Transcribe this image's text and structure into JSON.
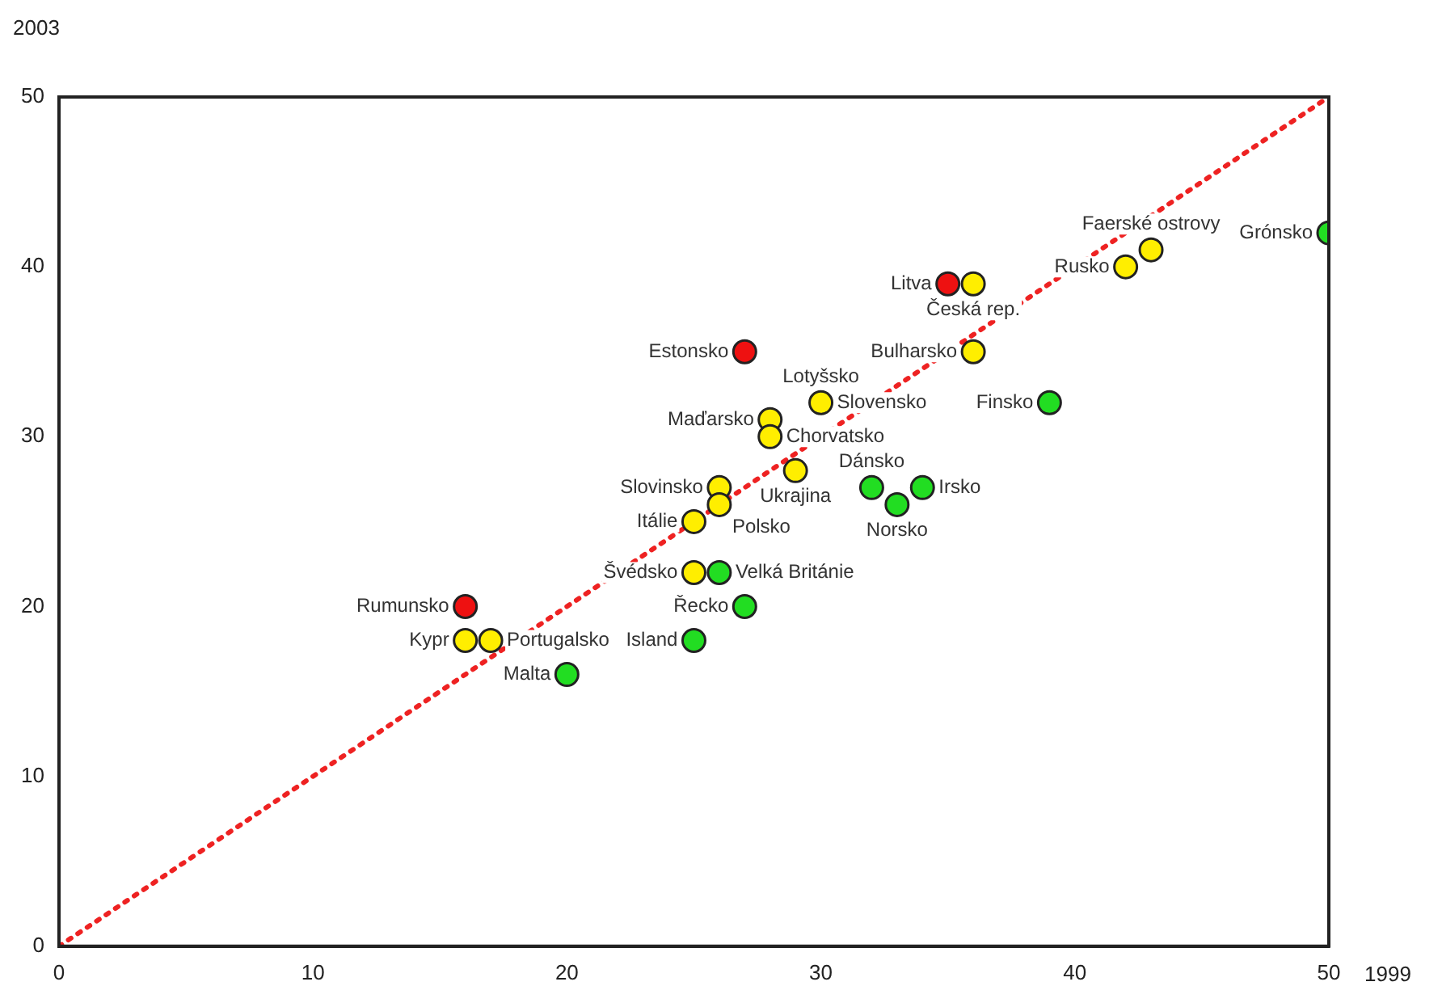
{
  "chart_data": {
    "type": "scatter",
    "xlabel": "1999",
    "ylabel": "2003",
    "xlim": [
      0,
      50
    ],
    "ylim": [
      0,
      50
    ],
    "xticks": [
      0,
      10,
      20,
      30,
      40,
      50
    ],
    "yticks": [
      0,
      10,
      20,
      30,
      40,
      50
    ],
    "grid": false,
    "legend": false,
    "marker": "circle",
    "series": [
      {
        "color": "#ee1111",
        "x": [
          35,
          27,
          16
        ],
        "values": [
          39,
          35,
          20
        ]
      },
      {
        "color": "#ffee00",
        "x": [
          43,
          42,
          36,
          36,
          30,
          28,
          28,
          29,
          26,
          26,
          25,
          25,
          16,
          17
        ],
        "values": [
          41,
          40,
          39,
          35,
          32,
          31,
          30,
          28,
          27,
          26,
          25,
          22,
          18,
          18
        ]
      },
      {
        "color": "#22dd22",
        "x": [
          50,
          39,
          34,
          32,
          33,
          26,
          27,
          25,
          20
        ],
        "values": [
          42,
          32,
          27,
          27,
          26,
          22,
          20,
          18,
          16
        ]
      },
      {
        "type": "line",
        "color": "#ee2222",
        "line_style": "dotted",
        "marker": "none",
        "x": [
          0,
          50
        ],
        "values": [
          0,
          50
        ]
      }
    ],
    "annotations": [
      {
        "text": "Grónsko",
        "x": 50,
        "y": 42
      },
      {
        "text": "Faerské ostrovy",
        "x": 43,
        "y": 41
      },
      {
        "text": "Rusko",
        "x": 42,
        "y": 40
      },
      {
        "text": "Česká rep.",
        "x": 36,
        "y": 39
      },
      {
        "text": "Litva",
        "x": 35,
        "y": 39
      },
      {
        "text": "Estonsko",
        "x": 27,
        "y": 35
      },
      {
        "text": "Bulharsko",
        "x": 36,
        "y": 35
      },
      {
        "text": "Slovensko",
        "x": 30,
        "y": 32
      },
      {
        "text": "Lotyšsko",
        "x": 30,
        "y": 32
      },
      {
        "text": "Finsko",
        "x": 39,
        "y": 32
      },
      {
        "text": "Maďarsko",
        "x": 28,
        "y": 31
      },
      {
        "text": "Chorvatsko",
        "x": 28,
        "y": 30
      },
      {
        "text": "Ukrajina",
        "x": 29,
        "y": 28
      },
      {
        "text": "Irsko",
        "x": 34,
        "y": 27
      },
      {
        "text": "Dánsko",
        "x": 32,
        "y": 27
      },
      {
        "text": "Norsko",
        "x": 33,
        "y": 26
      },
      {
        "text": "Slovinsko",
        "x": 26,
        "y": 27
      },
      {
        "text": "Polsko",
        "x": 26,
        "y": 26
      },
      {
        "text": "Itálie",
        "x": 25,
        "y": 25
      },
      {
        "text": "Švédsko",
        "x": 25,
        "y": 22
      },
      {
        "text": "Velká Británie",
        "x": 26,
        "y": 22
      },
      {
        "text": "Řecko",
        "x": 27,
        "y": 20
      },
      {
        "text": "Rumunsko",
        "x": 16,
        "y": 20
      },
      {
        "text": "Kypr",
        "x": 16,
        "y": 18
      },
      {
        "text": "Portugalsko",
        "x": 17,
        "y": 18
      },
      {
        "text": "Island",
        "x": 25,
        "y": 18
      },
      {
        "text": "Malta",
        "x": 20,
        "y": 16
      }
    ]
  }
}
